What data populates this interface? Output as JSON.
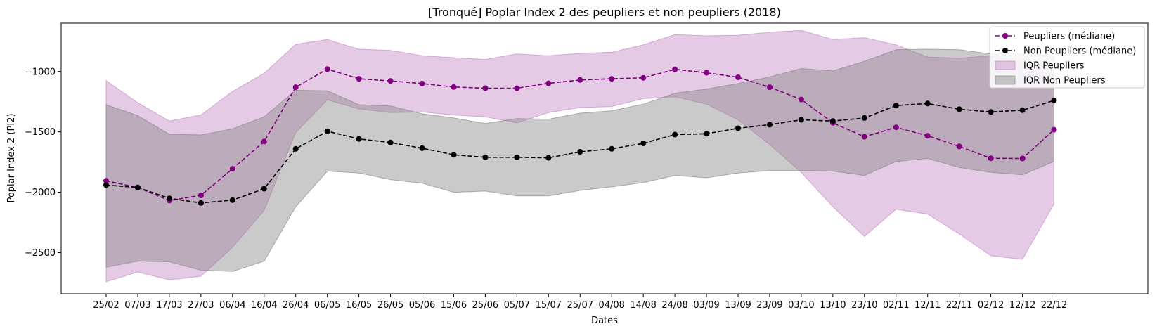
{
  "chart_data": {
    "type": "line",
    "title": "[Tronqué] Poplar Index 2 des peupliers et non peupliers (2018)",
    "xlabel": "Dates",
    "ylabel": "Poplar Index 2 (PI2)",
    "ylim": [
      -2840,
      -600
    ],
    "yticks": [
      -1000,
      -1500,
      -2000,
      -2500
    ],
    "ytick_labels": [
      "−1000",
      "−1500",
      "−2000",
      "−2500"
    ],
    "grid": false,
    "legend_position": "top-right",
    "x": [
      "25/02",
      "07/03",
      "17/03",
      "27/03",
      "06/04",
      "16/04",
      "26/04",
      "06/05",
      "16/05",
      "26/05",
      "05/06",
      "15/06",
      "25/06",
      "05/07",
      "15/07",
      "25/07",
      "04/08",
      "14/08",
      "24/08",
      "03/09",
      "13/09",
      "23/09",
      "03/10",
      "13/10",
      "23/10",
      "02/11",
      "12/11",
      "22/11",
      "02/12",
      "12/12",
      "22/12"
    ],
    "series": [
      {
        "name": "Peupliers (médiane)",
        "kind": "line",
        "color": "#800080",
        "marker": "circle",
        "linestyle": "dashed",
        "values": [
          -1905,
          -1960,
          -2068,
          -2025,
          -1805,
          -1580,
          -1130,
          -980,
          -1060,
          -1078,
          -1100,
          -1128,
          -1138,
          -1138,
          -1098,
          -1070,
          -1060,
          -1052,
          -982,
          -1010,
          -1048,
          -1130,
          -1232,
          -1425,
          -1540,
          -1462,
          -1532,
          -1620,
          -1718,
          -1720,
          -1482
        ]
      },
      {
        "name": "Non Peupliers (médiane)",
        "kind": "line",
        "color": "#000000",
        "marker": "circle",
        "linestyle": "dashed",
        "values": [
          -1940,
          -1960,
          -2050,
          -2088,
          -2065,
          -1970,
          -1640,
          -1495,
          -1558,
          -1588,
          -1635,
          -1690,
          -1710,
          -1710,
          -1715,
          -1665,
          -1640,
          -1595,
          -1522,
          -1515,
          -1470,
          -1440,
          -1400,
          -1410,
          -1385,
          -1282,
          -1265,
          -1312,
          -1335,
          -1320,
          -1240
        ]
      },
      {
        "name": "IQR Peupliers",
        "kind": "band",
        "color": "#c080c0",
        "upper": [
          -1075,
          -1258,
          -1410,
          -1360,
          -1165,
          -1015,
          -775,
          -735,
          -815,
          -825,
          -870,
          -885,
          -900,
          -855,
          -870,
          -850,
          -840,
          -780,
          -695,
          -705,
          -700,
          -675,
          -660,
          -735,
          -720,
          -780,
          -880,
          -890,
          -870,
          -920,
          -980
        ],
        "lower": [
          -2740,
          -2660,
          -2725,
          -2695,
          -2455,
          -2150,
          -1505,
          -1235,
          -1310,
          -1340,
          -1335,
          -1360,
          -1375,
          -1425,
          -1340,
          -1298,
          -1290,
          -1225,
          -1210,
          -1270,
          -1400,
          -1605,
          -1835,
          -2120,
          -2365,
          -2140,
          -2180,
          -2345,
          -2525,
          -2555,
          -2095
        ]
      },
      {
        "name": "IQR Non Peupliers",
        "kind": "band",
        "color": "#808080",
        "upper": [
          -1275,
          -1365,
          -1520,
          -1525,
          -1475,
          -1375,
          -1155,
          -1160,
          -1275,
          -1285,
          -1350,
          -1385,
          -1430,
          -1390,
          -1395,
          -1345,
          -1325,
          -1270,
          -1180,
          -1145,
          -1100,
          -1045,
          -975,
          -995,
          -915,
          -820,
          -815,
          -820,
          -855,
          -855,
          -870
        ],
        "lower": [
          -2620,
          -2570,
          -2575,
          -2645,
          -2655,
          -2570,
          -2120,
          -1825,
          -1840,
          -1895,
          -1925,
          -2000,
          -1990,
          -2030,
          -2030,
          -1985,
          -1955,
          -1920,
          -1860,
          -1880,
          -1840,
          -1820,
          -1820,
          -1825,
          -1860,
          -1745,
          -1720,
          -1795,
          -1835,
          -1855,
          -1745
        ]
      }
    ]
  }
}
